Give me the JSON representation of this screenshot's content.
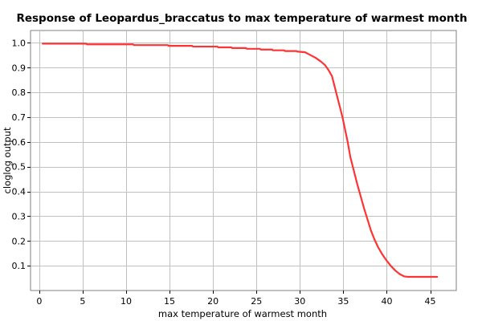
{
  "chart_data": {
    "type": "line",
    "title": "Response of Leopardus_braccatus to max temperature of warmest month",
    "xlabel": "max temperature of warmest month",
    "ylabel": "cloglog output",
    "xlim": [
      -1,
      48
    ],
    "ylim": [
      0,
      1.05
    ],
    "x_ticks": [
      0,
      5,
      10,
      15,
      20,
      25,
      30,
      35,
      40,
      45
    ],
    "y_ticks": [
      0.1,
      0.2,
      0.3,
      0.4,
      0.5,
      0.6,
      0.7,
      0.8,
      0.9,
      1.0
    ],
    "x_tick_labels": [
      "0",
      "5",
      "10",
      "15",
      "20",
      "25",
      "30",
      "35",
      "40",
      "45"
    ],
    "y_tick_labels": [
      "0.1",
      "0.2",
      "0.3",
      "0.4",
      "0.5",
      "0.6",
      "0.7",
      "0.8",
      "0.9",
      "1.0"
    ],
    "grid": true,
    "series_color": "#ff3333",
    "series": [
      {
        "x": [
          0.4,
          5.4,
          5.5,
          10.8,
          10.9,
          14.8,
          14.9,
          17.6,
          17.7,
          20.5,
          20.6,
          22.1,
          22.2,
          23.8,
          23.9,
          25.4,
          25.5,
          26.8,
          26.9,
          28.2,
          28.3,
          29.6,
          29.7,
          30.6,
          31.2,
          31.8,
          32.4,
          32.9,
          33.3,
          33.7,
          34.1,
          34.5,
          34.9,
          35.2,
          35.5,
          35.8,
          36.2,
          36.6,
          37.0,
          37.4,
          37.8,
          38.2,
          38.6,
          39.0,
          39.5,
          40.0,
          40.5,
          41.0,
          41.5,
          42.0,
          42.5,
          44.0,
          45.8
        ],
        "y": [
          0.997,
          0.997,
          0.994,
          0.994,
          0.991,
          0.991,
          0.988,
          0.988,
          0.985,
          0.985,
          0.982,
          0.982,
          0.979,
          0.979,
          0.976,
          0.976,
          0.973,
          0.973,
          0.97,
          0.97,
          0.967,
          0.967,
          0.965,
          0.962,
          0.951,
          0.94,
          0.925,
          0.91,
          0.89,
          0.865,
          0.81,
          0.755,
          0.7,
          0.65,
          0.6,
          0.54,
          0.485,
          0.43,
          0.38,
          0.33,
          0.285,
          0.24,
          0.205,
          0.175,
          0.145,
          0.12,
          0.098,
          0.08,
          0.066,
          0.057,
          0.055,
          0.055,
          0.055
        ]
      }
    ]
  }
}
